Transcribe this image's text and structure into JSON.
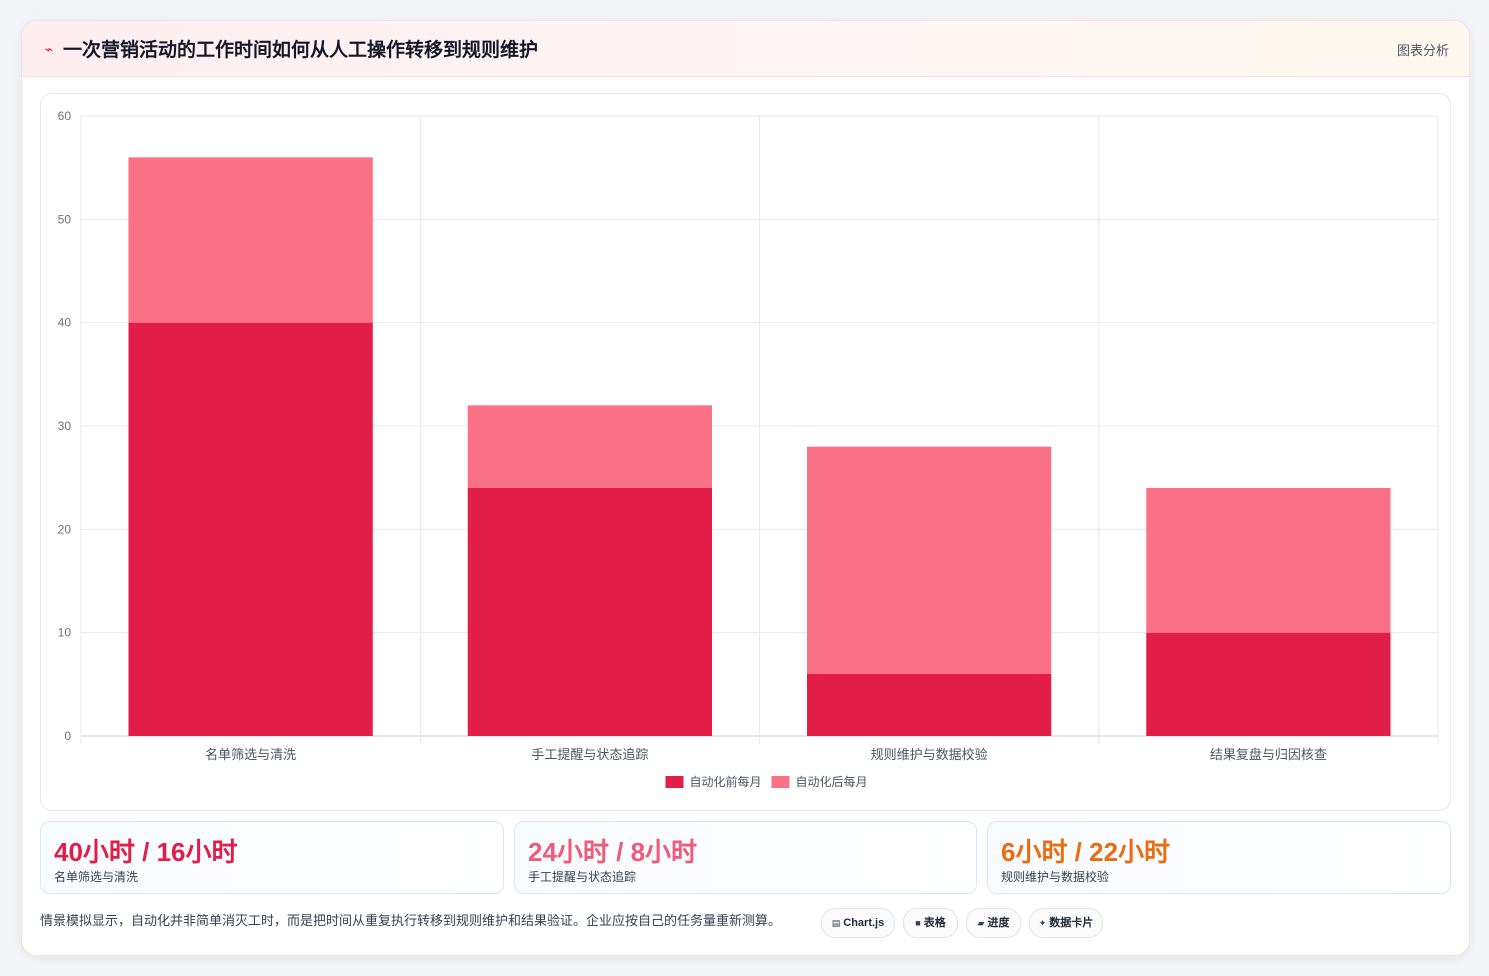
{
  "header": {
    "icon": "lightning-icon",
    "title": "一次营销活动的工作时间如何从人工操作转移到规则维护",
    "tag": "图表分析"
  },
  "chart_data": {
    "type": "bar",
    "stacked": true,
    "title": "",
    "xlabel": "",
    "ylabel": "",
    "categories": [
      "名单筛选与清洗",
      "手工提醒与状态追踪",
      "规则维护与数据校验",
      "结果复盘与归因核查"
    ],
    "series": [
      {
        "name": "自动化前每月",
        "color": "#e11d48",
        "values": [
          40,
          24,
          6,
          10
        ]
      },
      {
        "name": "自动化后每月",
        "color": "#fb7185",
        "values": [
          16,
          8,
          22,
          14
        ]
      }
    ],
    "ylim": [
      0,
      60
    ],
    "yticks": [
      0,
      10,
      20,
      30,
      40,
      50,
      60
    ],
    "grid": true,
    "legend": "bottom"
  },
  "stats": [
    {
      "value": "40小时 / 16小时",
      "label": "名单筛选与清洗",
      "color": "#e11d48"
    },
    {
      "value": "24小时 / 8小时",
      "label": "手工提醒与状态追踪",
      "color": "#f05a78"
    },
    {
      "value": "6小时 / 22小时",
      "label": "规则维护与数据校验",
      "color": "#ea6c10"
    }
  ],
  "footer": {
    "note": "情景模拟显示，自动化并非简单消灭工时，而是把时间从重复执行转移到规则维护和结果验证。企业应按自己的任务量重新测算。",
    "chips": [
      {
        "icon": "chart-icon",
        "glyph": "▤",
        "label": "Chart.js"
      },
      {
        "icon": "table-icon",
        "glyph": "■",
        "label": "表格"
      },
      {
        "icon": "progress-icon",
        "glyph": "▰",
        "label": "进度"
      },
      {
        "icon": "sparkle-icon",
        "glyph": "✦",
        "label": "数据卡片"
      }
    ]
  }
}
